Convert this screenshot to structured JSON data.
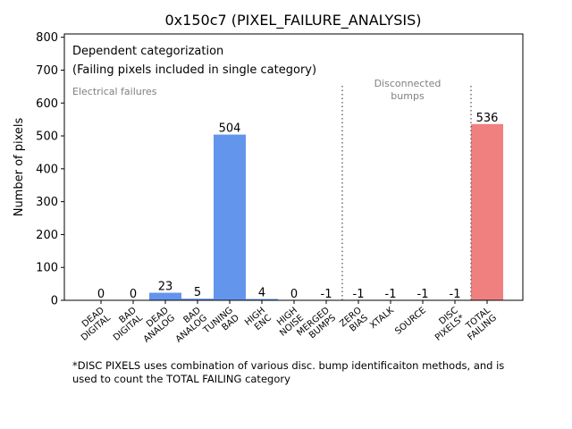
{
  "chart_data": {
    "type": "bar",
    "title": "0x150c7 (PIXEL_FAILURE_ANALYSIS)",
    "xlabel": "",
    "ylabel": "Number of pixels",
    "ylim": [
      0,
      810
    ],
    "yticks": [
      0,
      100,
      200,
      300,
      400,
      500,
      600,
      700,
      800
    ],
    "ytick_labels": [
      "0",
      "100",
      "200",
      "300",
      "400",
      "500",
      "600",
      "700",
      "800"
    ],
    "categories": [
      [
        "DEAD",
        "DIGITAL"
      ],
      [
        "BAD",
        "DIGITAL"
      ],
      [
        "DEAD",
        "ANALOG"
      ],
      [
        "BAD",
        "ANALOG"
      ],
      [
        "TUNING",
        "BAD"
      ],
      [
        "HIGH",
        "ENC"
      ],
      [
        "HIGH",
        "NOISE"
      ],
      [
        "MERGED",
        "BUMPS"
      ],
      [
        "ZERO",
        "BIAS"
      ],
      [
        "XTALK"
      ],
      [
        "SOURCE"
      ],
      [
        "DISC",
        "PIXELS*"
      ],
      [
        "TOTAL",
        "FAILING"
      ]
    ],
    "values": [
      0,
      0,
      23,
      5,
      504,
      4,
      0,
      -1,
      -1,
      -1,
      -1,
      -1,
      536
    ],
    "value_labels": [
      "0",
      "0",
      "23",
      "5",
      "504",
      "4",
      "0",
      "-1",
      "-1",
      "-1",
      "-1",
      "-1",
      "536"
    ],
    "bar_colors": [
      "#6495ed",
      "#6495ed",
      "#6495ed",
      "#6495ed",
      "#6495ed",
      "#6495ed",
      "#6495ed",
      "#6495ed",
      "#6495ed",
      "#6495ed",
      "#6495ed",
      "#6495ed",
      "#f08080"
    ],
    "annotations": {
      "inset_line1": "Dependent categorization",
      "inset_line2": "(Failing pixels included in single category)",
      "electrical": "Electrical failures",
      "disconnected_line1": "Disconnected",
      "disconnected_line2": "bumps"
    },
    "separators_after_category": [
      7,
      11
    ],
    "footnote_line1": "*DISC PIXELS uses combination of various disc. bump identificaiton methods, and is",
    "footnote_line2": "used to count the TOTAL FAILING category"
  }
}
